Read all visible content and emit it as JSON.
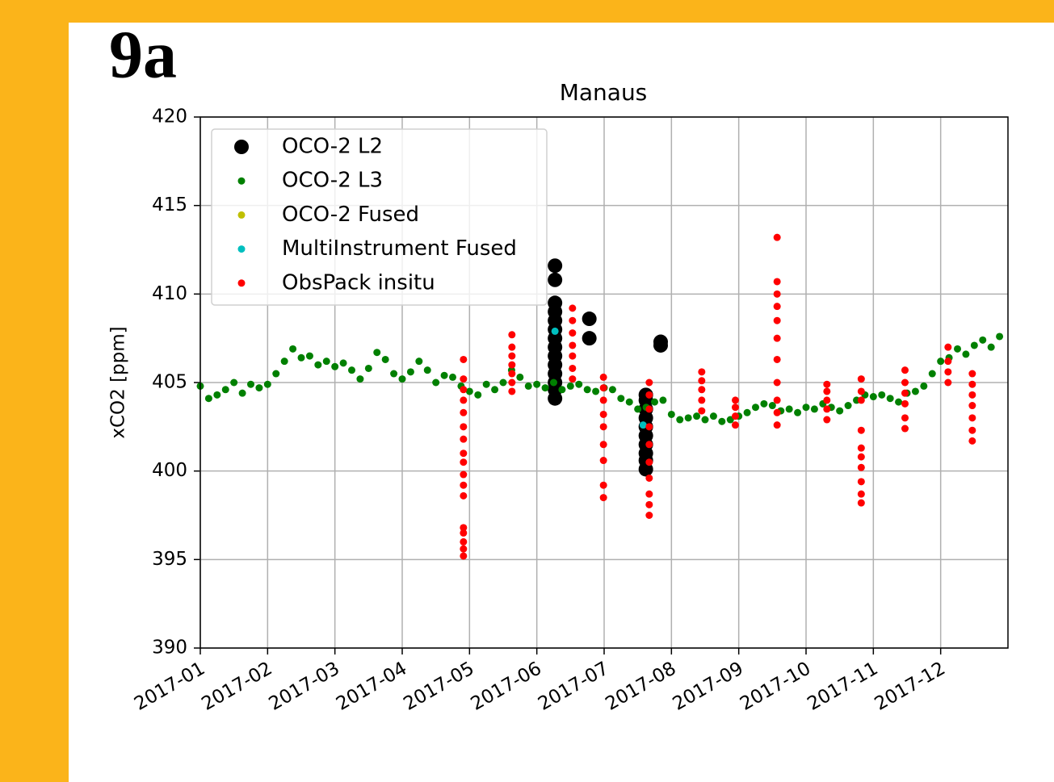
{
  "panel_label": "9a",
  "chart_data": {
    "type": "scatter",
    "title": "Manaus",
    "ylabel": "xCO2 [ppm]",
    "xlim": [
      1,
      13
    ],
    "xticks": [
      {
        "value": 1,
        "label": "2017-01"
      },
      {
        "value": 2,
        "label": "2017-02"
      },
      {
        "value": 3,
        "label": "2017-03"
      },
      {
        "value": 4,
        "label": "2017-04"
      },
      {
        "value": 5,
        "label": "2017-05"
      },
      {
        "value": 6,
        "label": "2017-06"
      },
      {
        "value": 7,
        "label": "2017-07"
      },
      {
        "value": 8,
        "label": "2017-08"
      },
      {
        "value": 9,
        "label": "2017-09"
      },
      {
        "value": 10,
        "label": "2017-10"
      },
      {
        "value": 11,
        "label": "2017-11"
      },
      {
        "value": 12,
        "label": "2017-12"
      }
    ],
    "ylim": [
      390,
      420
    ],
    "yticks": [
      390,
      395,
      400,
      405,
      410,
      415,
      420
    ],
    "grid": true,
    "legend": "upper left",
    "series": [
      {
        "name": "OCO-2 L2",
        "color": "#000000",
        "size": 9,
        "x": [
          6.27,
          6.27,
          6.27,
          6.27,
          6.27,
          6.27,
          6.27,
          6.27,
          6.27,
          6.27,
          6.27,
          6.27,
          6.27,
          6.27,
          6.78,
          6.78,
          7.62,
          7.62,
          7.62,
          7.62,
          7.62,
          7.62,
          7.62,
          7.62,
          7.62,
          7.62,
          7.84,
          7.84
        ],
        "values": [
          404.1,
          404.6,
          405.0,
          405.5,
          406.0,
          406.5,
          407.0,
          407.5,
          408.0,
          408.5,
          409.0,
          409.5,
          410.8,
          411.6,
          407.5,
          408.6,
          400.1,
          400.6,
          401.0,
          401.5,
          402.0,
          402.5,
          403.0,
          403.5,
          404.0,
          404.3,
          407.1,
          407.3
        ]
      },
      {
        "name": "OCO-2 L3",
        "color": "#008000",
        "size": 4.5,
        "x": [
          1.0,
          1.125,
          1.25,
          1.375,
          1.5,
          1.625,
          1.75,
          1.875,
          2.0,
          2.125,
          2.25,
          2.375,
          2.5,
          2.625,
          2.75,
          2.875,
          3.0,
          3.125,
          3.25,
          3.375,
          3.5,
          3.625,
          3.75,
          3.875,
          4.0,
          4.125,
          4.25,
          4.375,
          4.5,
          4.625,
          4.75,
          4.875,
          5.0,
          5.125,
          5.25,
          5.375,
          5.5,
          5.625,
          5.75,
          5.875,
          6.0,
          6.125,
          6.25,
          6.375,
          6.5,
          6.625,
          6.75,
          6.875,
          7.0,
          7.125,
          7.25,
          7.375,
          7.5,
          7.625,
          7.75,
          7.875,
          8.0,
          8.125,
          8.25,
          8.375,
          8.5,
          8.625,
          8.75,
          8.875,
          9.0,
          9.125,
          9.25,
          9.375,
          9.5,
          9.625,
          9.75,
          9.875,
          10.0,
          10.125,
          10.25,
          10.375,
          10.5,
          10.625,
          10.75,
          10.875,
          11.0,
          11.125,
          11.25,
          11.375,
          11.5,
          11.625,
          11.75,
          11.875,
          12.0,
          12.125,
          12.25,
          12.375,
          12.5,
          12.625,
          12.75,
          12.875
        ],
        "values": [
          404.8,
          404.1,
          404.3,
          404.6,
          405.0,
          404.4,
          404.9,
          404.7,
          404.9,
          405.5,
          406.2,
          406.9,
          406.4,
          406.5,
          406.0,
          406.2,
          405.9,
          406.1,
          405.7,
          405.2,
          405.8,
          406.7,
          406.3,
          405.5,
          405.2,
          405.6,
          406.2,
          405.7,
          405.0,
          405.4,
          405.3,
          404.8,
          404.5,
          404.3,
          404.9,
          404.6,
          405.0,
          405.7,
          405.3,
          404.8,
          404.9,
          404.7,
          405.0,
          404.6,
          404.8,
          404.9,
          404.6,
          404.5,
          404.7,
          404.6,
          404.1,
          403.9,
          403.5,
          403.6,
          403.9,
          404.0,
          403.2,
          402.9,
          403.0,
          403.1,
          402.9,
          403.1,
          402.8,
          402.9,
          403.1,
          403.3,
          403.6,
          403.8,
          403.7,
          403.4,
          403.5,
          403.3,
          403.6,
          403.5,
          403.8,
          403.6,
          403.4,
          403.7,
          404.0,
          404.3,
          404.2,
          404.3,
          404.1,
          403.9,
          404.4,
          404.5,
          404.8,
          405.5,
          406.2,
          406.4,
          406.9,
          406.6,
          407.1,
          407.4,
          407.0,
          407.6
        ]
      },
      {
        "name": "OCO-2 Fused",
        "color": "#bfbf00",
        "size": 4.5,
        "x": [],
        "values": []
      },
      {
        "name": "MultiInstrument Fused",
        "color": "#00bfbf",
        "size": 4.5,
        "x": [
          6.27,
          7.58
        ],
        "values": [
          407.9,
          402.6
        ]
      },
      {
        "name": "ObsPack insitu",
        "color": "#ff0000",
        "size": 4.5,
        "x": [
          4.91,
          4.91,
          4.91,
          4.91,
          4.91,
          4.91,
          4.91,
          4.91,
          4.91,
          4.91,
          4.91,
          4.91,
          4.91,
          4.91,
          4.91,
          4.91,
          4.91,
          5.63,
          5.63,
          5.63,
          5.63,
          5.63,
          5.63,
          5.63,
          6.53,
          6.53,
          6.53,
          6.53,
          6.53,
          6.53,
          6.53,
          6.99,
          6.99,
          6.99,
          6.99,
          6.99,
          6.99,
          6.99,
          6.99,
          6.99,
          7.67,
          7.67,
          7.67,
          7.67,
          7.67,
          7.67,
          7.67,
          7.67,
          7.67,
          7.67,
          8.45,
          8.45,
          8.45,
          8.45,
          8.45,
          8.95,
          8.95,
          8.95,
          8.95,
          9.57,
          9.57,
          9.57,
          9.57,
          9.57,
          9.57,
          9.57,
          9.57,
          9.57,
          9.57,
          9.57,
          10.31,
          10.31,
          10.31,
          10.31,
          10.31,
          10.82,
          10.82,
          10.82,
          10.82,
          10.82,
          10.82,
          10.82,
          10.82,
          10.82,
          10.82,
          11.47,
          11.47,
          11.47,
          11.47,
          11.47,
          11.47,
          12.11,
          12.11,
          12.11,
          12.11,
          12.47,
          12.47,
          12.47,
          12.47,
          12.47,
          12.47,
          12.47
        ],
        "values": [
          395.2,
          395.6,
          396.0,
          396.5,
          396.8,
          398.6,
          399.2,
          399.8,
          400.5,
          401.0,
          401.8,
          402.5,
          403.3,
          404.0,
          404.6,
          405.2,
          406.3,
          404.5,
          405.0,
          405.5,
          406.0,
          406.5,
          407.0,
          407.7,
          405.2,
          405.8,
          406.5,
          407.1,
          407.8,
          408.5,
          409.2,
          398.5,
          399.2,
          400.6,
          401.5,
          402.5,
          403.2,
          404.0,
          404.7,
          405.3,
          397.5,
          398.1,
          398.7,
          399.6,
          400.5,
          401.5,
          402.5,
          403.5,
          404.3,
          405.0,
          403.4,
          404.0,
          404.6,
          405.1,
          405.6,
          402.6,
          403.1,
          403.6,
          404.0,
          402.6,
          403.3,
          404.0,
          405.0,
          406.3,
          407.5,
          408.5,
          409.3,
          410.0,
          410.7,
          413.2,
          402.9,
          403.5,
          404.0,
          404.5,
          404.9,
          398.2,
          398.7,
          399.4,
          400.2,
          400.8,
          401.3,
          402.3,
          404.0,
          404.5,
          405.2,
          402.4,
          403.0,
          403.8,
          404.4,
          405.0,
          405.7,
          405.0,
          405.6,
          406.2,
          407.0,
          401.7,
          402.3,
          403.0,
          403.7,
          404.3,
          404.9,
          405.5
        ]
      }
    ]
  }
}
